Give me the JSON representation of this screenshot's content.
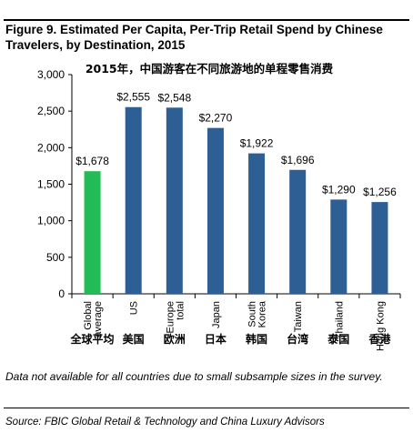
{
  "figure": {
    "title": "Figure 9. Estimated Per Capita, Per-Trip Retail Spend by Chinese Travelers, by Destination, 2015",
    "note": "Data not available for all countries due to small subsample sizes in the survey.",
    "source": "Source: FBIC Global Retail & Technology and China Luxury Advisors"
  },
  "chart_data": {
    "type": "bar",
    "title": "2015年，中国游客在不同旅游地的单程零售消费",
    "xlabel": "",
    "ylabel": "",
    "ylim": [
      0,
      3000
    ],
    "yticks": [
      "0",
      "500",
      "1,000",
      "1,500",
      "2,000",
      "2,500",
      "3,000"
    ],
    "grid": false,
    "legend": "none",
    "categories": [
      "Global average",
      "US",
      "Europe total",
      "Japan",
      "South Korea",
      "Taiwan",
      "Thailand",
      "Hong Kong"
    ],
    "category_labels": [
      [
        "Global",
        "average"
      ],
      [
        "US"
      ],
      [
        "Europe",
        "total"
      ],
      [
        "Japan"
      ],
      [
        "South",
        "Korea"
      ],
      [
        "Taiwan"
      ],
      [
        "Thailand"
      ],
      [
        "Hong Kong"
      ]
    ],
    "category_labels_cn": [
      "全球平均",
      "美国",
      "欧洲",
      "日本",
      "韩国",
      "台湾",
      "泰国",
      "香港"
    ],
    "values": [
      1678,
      2555,
      2548,
      2270,
      1922,
      1696,
      1290,
      1256
    ],
    "data_labels": [
      "$1,678",
      "$2,555",
      "$2,548",
      "$2,270",
      "$1,922",
      "$1,696",
      "$1,290",
      "$1,256"
    ],
    "colors": {
      "highlight": "#22bb55",
      "bar": "#2d5f94",
      "axis": "#000000"
    },
    "highlight_index": 0
  }
}
